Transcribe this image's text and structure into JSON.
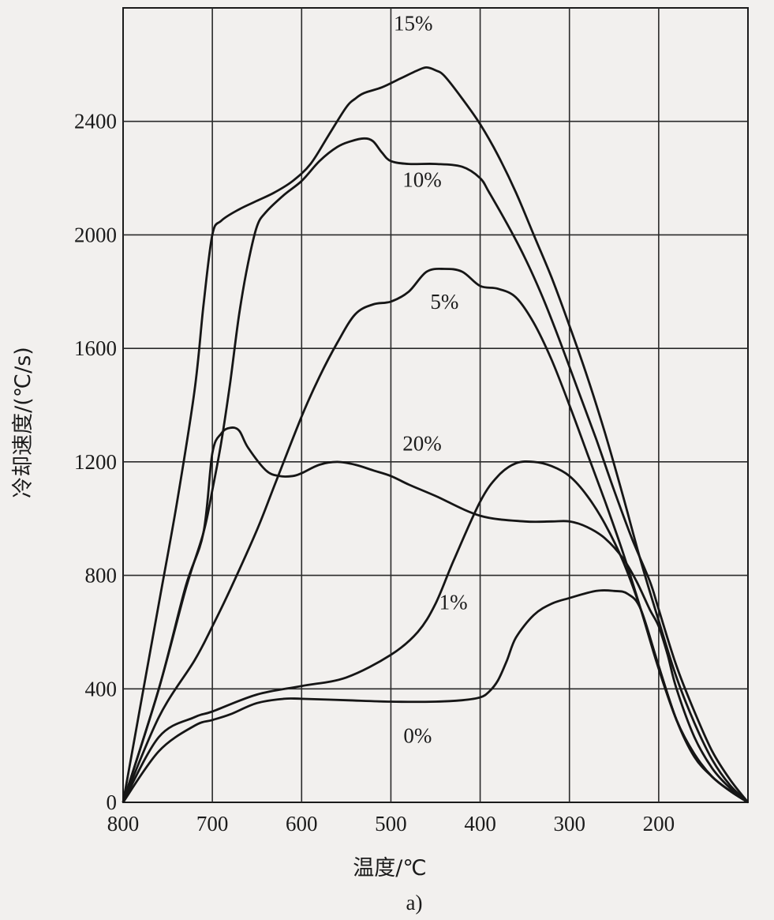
{
  "chart_data": {
    "type": "line",
    "title": "",
    "xlabel": "温度/℃",
    "ylabel": "冷却速度/(℃/s)",
    "caption": "a)",
    "xlim": [
      800,
      100
    ],
    "ylim": [
      0,
      2800
    ],
    "x_ticks": [
      800,
      700,
      600,
      500,
      400,
      300,
      200
    ],
    "y_ticks": [
      0,
      400,
      800,
      1200,
      1600,
      2000,
      2400
    ],
    "x_tick_labels": [
      "800",
      "700",
      "600",
      "500",
      "400",
      "300",
      "200"
    ],
    "y_tick_labels": [
      "0",
      "400",
      "800",
      "1200",
      "1600",
      "2000",
      "2400"
    ],
    "grid": true,
    "series": [
      {
        "name": "0%",
        "x": [
          800,
          760,
          720,
          700,
          680,
          650,
          620,
          600,
          550,
          500,
          450,
          420,
          400,
          390,
          380,
          370,
          360,
          340,
          320,
          300,
          270,
          250,
          235,
          220,
          200,
          180,
          160,
          140,
          120,
          100
        ],
        "y": [
          0,
          180,
          270,
          290,
          310,
          350,
          365,
          365,
          360,
          355,
          355,
          360,
          370,
          390,
          430,
          500,
          580,
          660,
          700,
          720,
          745,
          745,
          735,
          680,
          480,
          290,
          160,
          90,
          40,
          0
        ]
      },
      {
        "name": "1%",
        "x": [
          800,
          760,
          720,
          700,
          650,
          600,
          550,
          500,
          470,
          450,
          430,
          400,
          380,
          360,
          340,
          320,
          300,
          280,
          260,
          240,
          220,
          200,
          180,
          160,
          140,
          120,
          100
        ],
        "y": [
          0,
          230,
          300,
          320,
          380,
          410,
          440,
          520,
          600,
          700,
          850,
          1060,
          1150,
          1195,
          1200,
          1185,
          1150,
          1080,
          980,
          850,
          680,
          480,
          290,
          170,
          90,
          40,
          0
        ]
      },
      {
        "name": "5%",
        "x": [
          800,
          760,
          720,
          700,
          680,
          650,
          630,
          600,
          580,
          560,
          540,
          520,
          500,
          480,
          460,
          440,
          420,
          400,
          380,
          360,
          340,
          320,
          300,
          280,
          260,
          240,
          220,
          200,
          180,
          160,
          140,
          120,
          100
        ],
        "y": [
          0,
          300,
          500,
          620,
          750,
          960,
          1120,
          1360,
          1500,
          1620,
          1720,
          1755,
          1765,
          1800,
          1870,
          1880,
          1870,
          1820,
          1810,
          1780,
          1690,
          1560,
          1400,
          1230,
          1060,
          880,
          680,
          470,
          290,
          170,
          90,
          40,
          0
        ]
      },
      {
        "name": "10%",
        "x": [
          800,
          760,
          730,
          710,
          700,
          690,
          680,
          670,
          660,
          650,
          640,
          620,
          600,
          580,
          560,
          545,
          530,
          520,
          510,
          500,
          480,
          450,
          420,
          400,
          390,
          370,
          350,
          330,
          310,
          290,
          270,
          250,
          230,
          210,
          200,
          180,
          160,
          140,
          120,
          100
        ],
        "y": [
          0,
          400,
          750,
          950,
          1100,
          1270,
          1480,
          1720,
          1900,
          2030,
          2080,
          2140,
          2190,
          2260,
          2310,
          2330,
          2340,
          2330,
          2290,
          2260,
          2250,
          2250,
          2240,
          2200,
          2150,
          2040,
          1920,
          1780,
          1620,
          1450,
          1280,
          1100,
          930,
          780,
          680,
          480,
          320,
          180,
          80,
          0
        ]
      },
      {
        "name": "15%",
        "x": [
          800,
          780,
          760,
          740,
          720,
          710,
          700,
          690,
          670,
          650,
          630,
          610,
          590,
          570,
          550,
          540,
          530,
          510,
          490,
          470,
          460,
          450,
          440,
          420,
          400,
          380,
          360,
          340,
          320,
          300,
          280,
          260,
          240,
          220,
          200,
          180,
          160,
          140,
          120,
          100
        ],
        "y": [
          0,
          350,
          700,
          1050,
          1450,
          1750,
          2000,
          2050,
          2090,
          2120,
          2150,
          2190,
          2250,
          2350,
          2450,
          2480,
          2500,
          2520,
          2550,
          2580,
          2590,
          2580,
          2560,
          2480,
          2390,
          2280,
          2150,
          2000,
          1850,
          1680,
          1500,
          1300,
          1080,
          850,
          640,
          440,
          280,
          150,
          60,
          0
        ]
      },
      {
        "name": "20%",
        "x": [
          800,
          760,
          730,
          710,
          700,
          690,
          680,
          670,
          660,
          640,
          625,
          610,
          600,
          580,
          560,
          540,
          520,
          500,
          480,
          450,
          400,
          350,
          320,
          300,
          280,
          260,
          240,
          225,
          210,
          200,
          190,
          180,
          160,
          140,
          120,
          100
        ],
        "y": [
          0,
          400,
          760,
          950,
          1230,
          1300,
          1320,
          1310,
          1250,
          1170,
          1150,
          1150,
          1160,
          1190,
          1200,
          1190,
          1170,
          1150,
          1120,
          1080,
          1010,
          990,
          990,
          990,
          970,
          930,
          860,
          780,
          680,
          620,
          520,
          400,
          230,
          120,
          50,
          0
        ]
      }
    ],
    "series_label_positions": [
      {
        "x": 470,
        "y": 210
      },
      {
        "x": 430,
        "y": 680
      },
      {
        "x": 440,
        "y": 1740
      },
      {
        "x": 465,
        "y": 2170
      },
      {
        "x": 475,
        "y": 2720
      },
      {
        "x": 465,
        "y": 1240
      }
    ]
  }
}
